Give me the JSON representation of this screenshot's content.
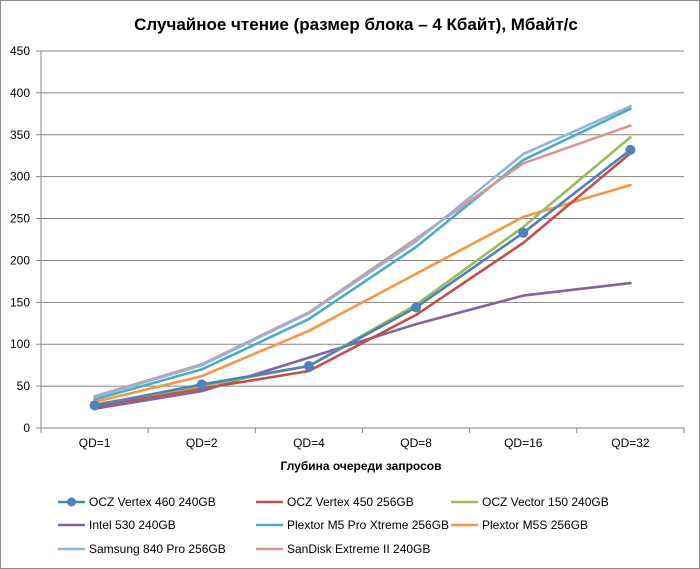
{
  "chart_data": {
    "type": "line",
    "title": "Случайное чтение (размер блока – 4 Кбайт), Мбайт/с",
    "xlabel": "Глубина очереди запросов",
    "ylabel": "",
    "categories": [
      "QD=1",
      "QD=2",
      "QD=4",
      "QD=8",
      "QD=16",
      "QD=32"
    ],
    "ylim": [
      0,
      450
    ],
    "yticks": [
      0,
      50,
      100,
      150,
      200,
      250,
      300,
      350,
      400,
      450
    ],
    "grid": true,
    "legend_position": "bottom",
    "series": [
      {
        "name": "OCZ Vertex 460 240GB",
        "color": "#4f81bd",
        "marker": "circle",
        "values": [
          27,
          52,
          74,
          144,
          233,
          332
        ]
      },
      {
        "name": "OCZ Vertex 450 256GB",
        "color": "#c0504d",
        "marker": "none",
        "values": [
          26,
          47,
          68,
          135,
          221,
          328
        ]
      },
      {
        "name": "OCZ Vector 150 240GB",
        "color": "#9bbb59",
        "marker": "none",
        "values": [
          28,
          50,
          74,
          147,
          240,
          347
        ]
      },
      {
        "name": "Intel 530 240GB",
        "color": "#8064a2",
        "marker": "none",
        "values": [
          23,
          44,
          84,
          124,
          158,
          173
        ]
      },
      {
        "name": "Plextor M5 Pro Xtreme 256GB",
        "color": "#4bacc6",
        "marker": "none",
        "values": [
          34,
          70,
          130,
          216,
          320,
          381
        ]
      },
      {
        "name": "Plextor M5S 256GB",
        "color": "#f79646",
        "marker": "none",
        "values": [
          31,
          62,
          116,
          184,
          252,
          290
        ]
      },
      {
        "name": "Samsung 840 Pro 256GB",
        "color": "#95b3d7",
        "marker": "none",
        "values": [
          37,
          75,
          137,
          223,
          327,
          384
        ]
      },
      {
        "name": "SanDisk Extreme II 240GB",
        "color": "#d99694",
        "marker": "none",
        "values": [
          38,
          76,
          138,
          226,
          316,
          361
        ]
      }
    ]
  }
}
